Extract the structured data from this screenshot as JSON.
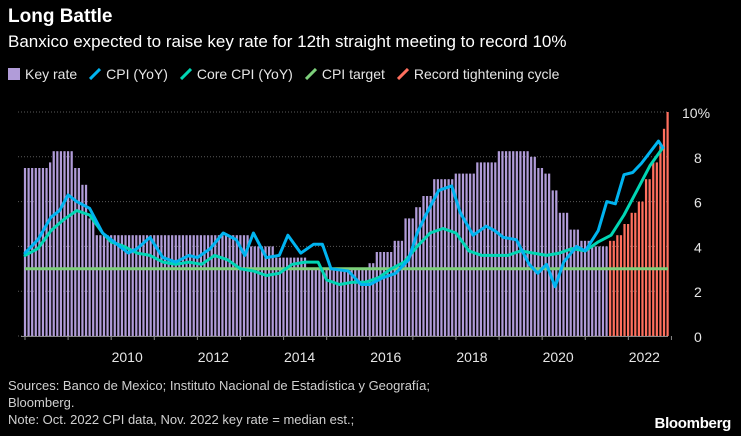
{
  "header": {
    "title": "Long Battle",
    "subtitle": "Banxico expected to raise key rate for 12th straight meeting to record 10%"
  },
  "legend": [
    {
      "label": "Key rate",
      "color": "#b19cd9",
      "shape": "box"
    },
    {
      "label": "CPI (YoY)",
      "color": "#00b4f0",
      "shape": "line"
    },
    {
      "label": "Core CPI (YoY)",
      "color": "#00d6b4",
      "shape": "line"
    },
    {
      "label": "CPI target",
      "color": "#7dcf7b",
      "shape": "line"
    },
    {
      "label": "Record tightening cycle",
      "color": "#ff6f5e",
      "shape": "line"
    }
  ],
  "chart_data": {
    "type": "bar",
    "x_range": [
      2008.0,
      2022.92
    ],
    "ylim": [
      0,
      10
    ],
    "yticks": [
      {
        "value": 0,
        "label": "0"
      },
      {
        "value": 2,
        "label": "2"
      },
      {
        "value": 4,
        "label": "4"
      },
      {
        "value": 6,
        "label": "6"
      },
      {
        "value": 8,
        "label": "8"
      },
      {
        "value": 10,
        "label": "10%"
      }
    ],
    "xticks": [
      {
        "value": 2010,
        "label": "2010"
      },
      {
        "value": 2012,
        "label": "2012"
      },
      {
        "value": 2014,
        "label": "2014"
      },
      {
        "value": 2016,
        "label": "2016"
      },
      {
        "value": 2018,
        "label": "2018"
      },
      {
        "value": 2020,
        "label": "2020"
      },
      {
        "value": 2022,
        "label": "2022"
      }
    ],
    "grid": "horizontal dotted",
    "cpi_target": 3,
    "tightening_start": 2021.5,
    "key_rate": {
      "name": "Key rate",
      "x": [
        2008.0,
        2008.5,
        2008.62,
        2008.9,
        2009.1,
        2009.3,
        2009.45,
        2009.6,
        2011.0,
        2013.2,
        2013.75,
        2014.5,
        2015.0,
        2015.95,
        2016.15,
        2016.5,
        2016.8,
        2017.0,
        2017.2,
        2017.45,
        2017.95,
        2018.45,
        2018.95,
        2019.55,
        2019.7,
        2019.85,
        2020.0,
        2020.2,
        2020.4,
        2020.6,
        2020.85,
        2021.1,
        2021.55,
        2021.7,
        2021.85,
        2022.05,
        2022.2,
        2022.4,
        2022.55,
        2022.7,
        2022.78,
        2022.86
      ],
      "values": [
        7.5,
        7.75,
        8.25,
        8.25,
        7.5,
        6.75,
        5.25,
        4.5,
        4.5,
        4.0,
        3.5,
        3.0,
        3.0,
        3.25,
        3.75,
        4.25,
        5.25,
        5.75,
        6.25,
        7.0,
        7.25,
        7.75,
        8.25,
        8.25,
        8.0,
        7.5,
        7.25,
        6.5,
        5.5,
        4.75,
        4.25,
        4.0,
        4.25,
        4.5,
        5.0,
        5.5,
        6.0,
        7.0,
        7.75,
        8.5,
        9.25,
        10.0
      ]
    },
    "cpi": {
      "name": "CPI (YoY)",
      "x": [
        2008.0,
        2008.3,
        2008.6,
        2008.8,
        2009.0,
        2009.2,
        2009.5,
        2009.8,
        2010.0,
        2010.2,
        2010.4,
        2010.6,
        2010.9,
        2011.2,
        2011.5,
        2011.8,
        2012.0,
        2012.3,
        2012.6,
        2012.9,
        2013.1,
        2013.3,
        2013.6,
        2013.9,
        2014.1,
        2014.4,
        2014.7,
        2014.9,
        2015.1,
        2015.5,
        2015.8,
        2016.0,
        2016.3,
        2016.6,
        2016.9,
        2017.1,
        2017.3,
        2017.6,
        2017.9,
        2018.1,
        2018.4,
        2018.7,
        2018.9,
        2019.1,
        2019.4,
        2019.7,
        2019.9,
        2020.1,
        2020.3,
        2020.5,
        2020.8,
        2021.0,
        2021.3,
        2021.5,
        2021.7,
        2021.9,
        2022.1,
        2022.3,
        2022.5,
        2022.7,
        2022.8
      ],
      "values": [
        3.7,
        4.3,
        5.3,
        5.6,
        6.3,
        6.0,
        5.7,
        4.6,
        4.3,
        4.0,
        3.7,
        3.9,
        4.4,
        3.5,
        3.3,
        3.6,
        3.5,
        3.9,
        4.6,
        4.3,
        3.6,
        4.6,
        3.5,
        3.6,
        4.5,
        3.7,
        4.1,
        4.1,
        3.0,
        2.9,
        2.3,
        2.3,
        2.6,
        2.8,
        3.4,
        4.6,
        5.4,
        6.5,
        6.7,
        5.5,
        4.5,
        4.9,
        4.7,
        4.4,
        4.3,
        3.2,
        2.8,
        3.2,
        2.2,
        3.3,
        4.0,
        3.8,
        4.7,
        6.0,
        5.9,
        7.2,
        7.3,
        7.7,
        8.2,
        8.7,
        8.4
      ]
    },
    "core_cpi": {
      "name": "Core CPI (YoY)",
      "x": [
        2008.0,
        2008.3,
        2008.6,
        2008.9,
        2009.2,
        2009.5,
        2009.8,
        2010.0,
        2010.3,
        2010.6,
        2010.9,
        2011.2,
        2011.5,
        2011.8,
        2012.1,
        2012.4,
        2012.7,
        2013.0,
        2013.3,
        2013.6,
        2013.9,
        2014.2,
        2014.5,
        2014.8,
        2015.0,
        2015.3,
        2015.6,
        2015.9,
        2016.2,
        2016.5,
        2016.8,
        2017.1,
        2017.4,
        2017.7,
        2018.0,
        2018.3,
        2018.6,
        2018.9,
        2019.2,
        2019.5,
        2019.8,
        2020.1,
        2020.4,
        2020.7,
        2021.0,
        2021.3,
        2021.6,
        2021.9,
        2022.2,
        2022.5,
        2022.8
      ],
      "values": [
        3.6,
        3.9,
        4.7,
        5.2,
        5.6,
        5.4,
        4.6,
        4.2,
        4.0,
        3.7,
        3.6,
        3.3,
        3.2,
        3.3,
        3.2,
        3.6,
        3.4,
        3.0,
        2.9,
        2.7,
        2.8,
        3.2,
        3.3,
        3.3,
        2.5,
        2.3,
        2.4,
        2.4,
        2.6,
        3.0,
        3.3,
        4.0,
        4.6,
        4.8,
        4.6,
        3.8,
        3.6,
        3.6,
        3.6,
        3.8,
        3.7,
        3.6,
        3.7,
        3.9,
        3.8,
        4.2,
        4.5,
        5.4,
        6.5,
        7.6,
        8.4
      ]
    }
  },
  "footer": {
    "line1": "Sources: Banco de Mexico; Instituto Nacional de Estadística y Geografía;",
    "line2": "Bloomberg.",
    "line3": "Note: Oct. 2022 CPI data, Nov. 2022 key rate = median est.;"
  },
  "brand": "Bloomberg"
}
